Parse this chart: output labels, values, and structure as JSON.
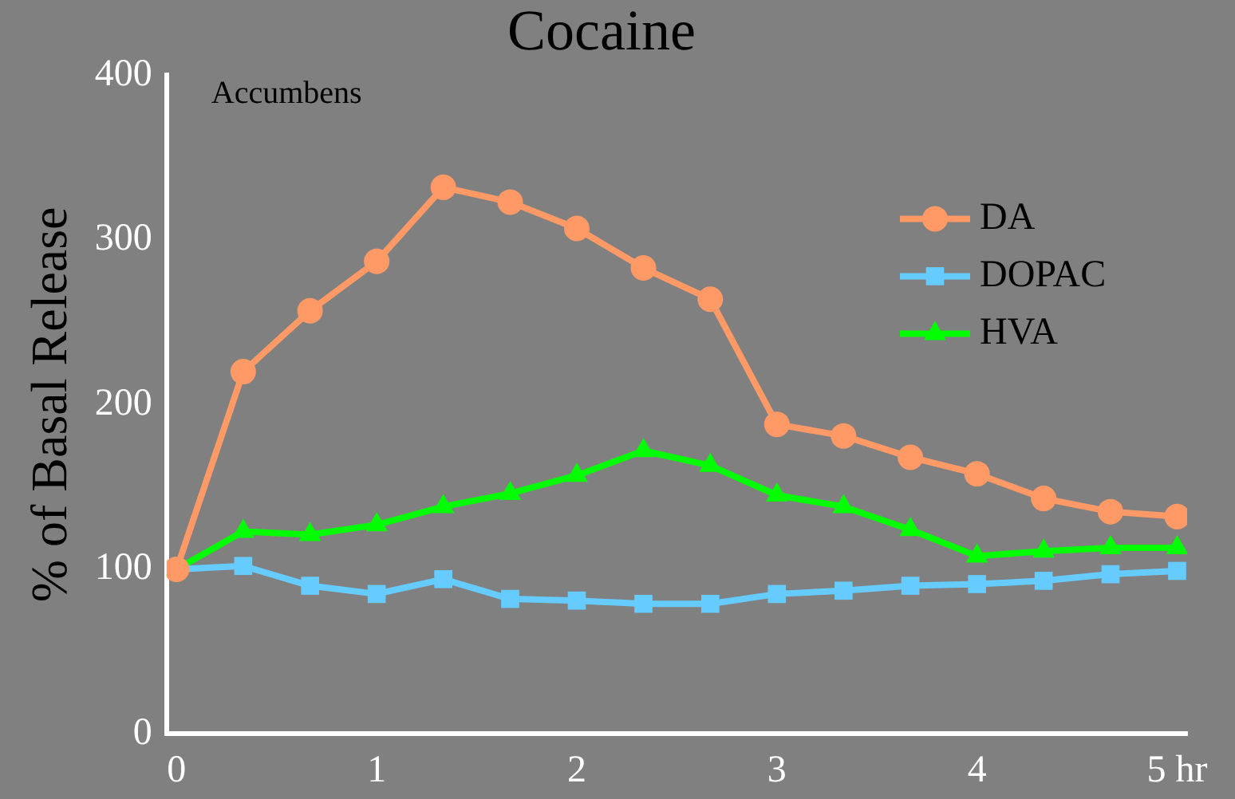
{
  "chart_data": {
    "type": "line",
    "title": "Cocaine",
    "ylabel": "% of Basal Release",
    "annotations": [
      "Accumbens"
    ],
    "x": [
      0,
      0.333,
      0.667,
      1,
      1.333,
      1.667,
      2,
      2.333,
      2.667,
      3,
      3.333,
      3.667,
      4,
      4.333,
      4.667,
      5
    ],
    "series": [
      {
        "name": "DA",
        "color": "#ff9966",
        "marker": "circle",
        "values": [
          100,
          220,
          257,
          287,
          332,
          323,
          307,
          283,
          264,
          188,
          181,
          168,
          158,
          143,
          135,
          132
        ]
      },
      {
        "name": "DOPAC",
        "color": "#66ccff",
        "marker": "square",
        "values": [
          100,
          102,
          90,
          85,
          94,
          82,
          81,
          79,
          79,
          85,
          87,
          90,
          91,
          93,
          97,
          99
        ]
      },
      {
        "name": "HVA",
        "color": "#00ff00",
        "marker": "triangle",
        "values": [
          100,
          123,
          121,
          127,
          138,
          146,
          157,
          172,
          163,
          145,
          138,
          124,
          108,
          111,
          113,
          113
        ]
      }
    ],
    "xlim": [
      -0.05,
      5.05
    ],
    "xticks": [
      0,
      1,
      2,
      3,
      4,
      {
        "value": 5,
        "label": "5 hr"
      }
    ],
    "ylim": [
      0,
      400
    ],
    "yticks": [
      0,
      100,
      200,
      300,
      400
    ],
    "grid": false,
    "legend": "top right",
    "line_style": "solid"
  }
}
